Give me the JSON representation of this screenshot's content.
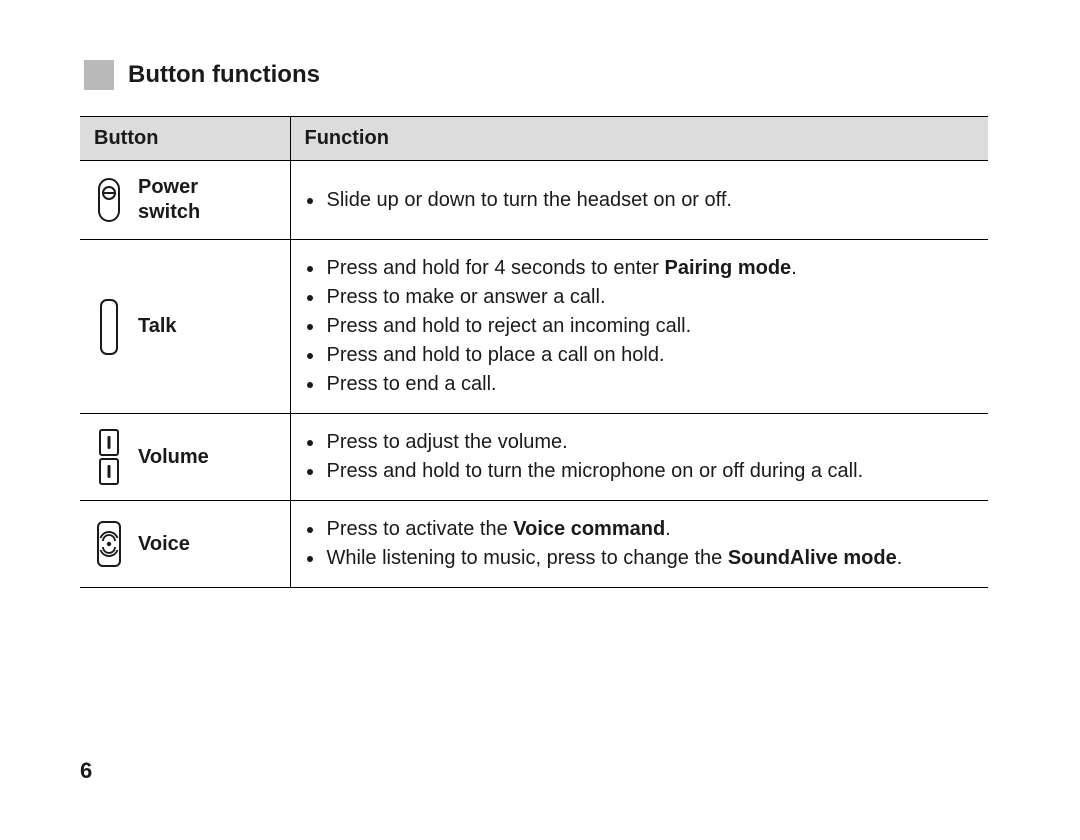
{
  "heading": "Button functions",
  "page_number": "6",
  "columns": {
    "button": "Button",
    "function": "Function"
  },
  "colors": {
    "heading_square": "#b9b9b9",
    "header_bg": "#dcdcdc",
    "border": "#000000",
    "text": "#1a1a1a",
    "icon_stroke": "#1a1a1a"
  },
  "rows": [
    {
      "icon": "power-switch",
      "label": "Power\nswitch",
      "functions": [
        "Slide up or down to turn the headset on or off."
      ]
    },
    {
      "icon": "talk",
      "label": "Talk",
      "functions": [
        "Press and hold for 4 seconds to enter <b>Pairing mode</b>.",
        "Press to make or answer a call.",
        "Press and hold to reject an incoming call.",
        "Press and hold to place a call on hold.",
        "Press to end a call."
      ]
    },
    {
      "icon": "volume",
      "label": "Volume",
      "functions": [
        "Press to adjust the volume.",
        "Press and hold to turn the microphone on or off during a call."
      ]
    },
    {
      "icon": "voice",
      "label": "Voice",
      "functions": [
        "Press to activate the <b>Voice command</b>.",
        "While listening to music, press to change the <b>SoundAlive mode</b>."
      ]
    }
  ]
}
